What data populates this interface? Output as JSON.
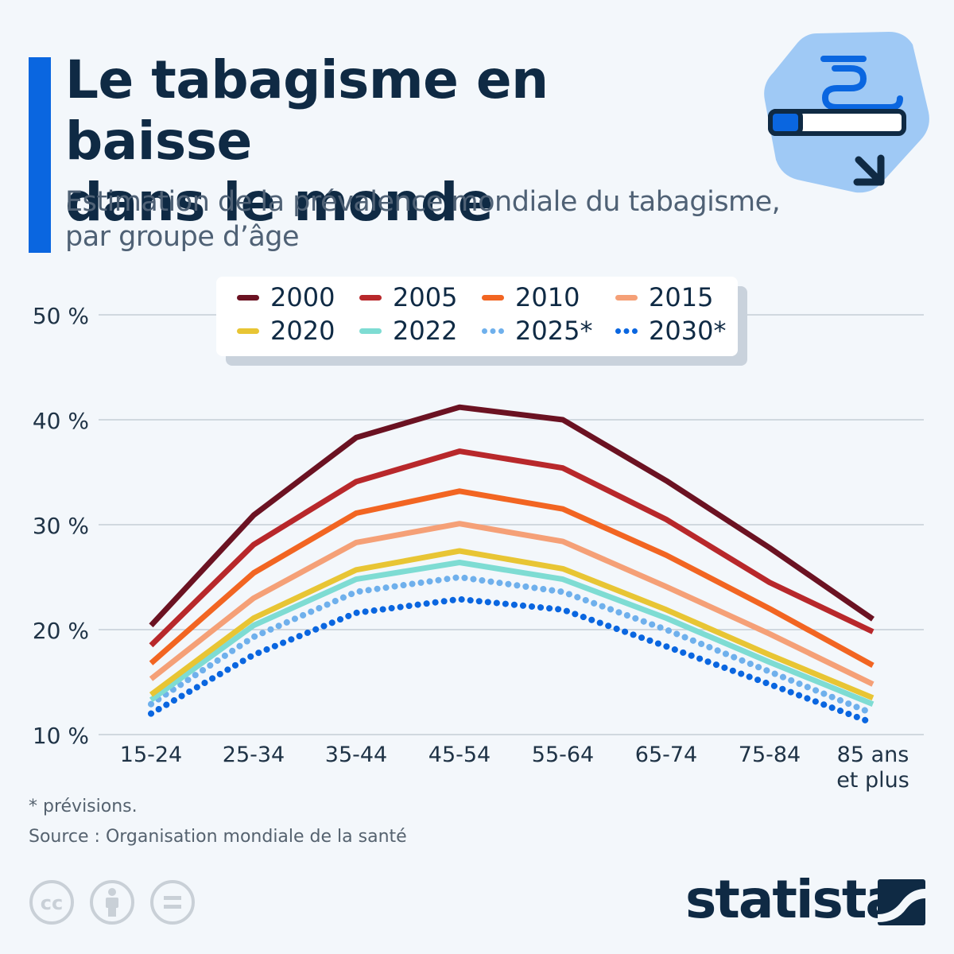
{
  "header": {
    "title_lines": [
      "Le tabagisme en baisse",
      "dans le monde"
    ],
    "subtitle_lines": [
      "Estimation de la prévalence mondiale du tabagisme,",
      "par groupe d’âge"
    ]
  },
  "chart_data": {
    "type": "line",
    "title": "Le tabagisme en baisse dans le monde",
    "subtitle": "Estimation de la prévalence mondiale du tabagisme, par groupe d’âge",
    "xlabel": "",
    "ylabel": "",
    "ylim": [
      10,
      50
    ],
    "grid": true,
    "legend_position": "top-center",
    "y_ticks": [
      {
        "value": 10,
        "label": "10 %"
      },
      {
        "value": 20,
        "label": "20 %"
      },
      {
        "value": 30,
        "label": "30 %"
      },
      {
        "value": 40,
        "label": "40 %"
      },
      {
        "value": 50,
        "label": "50 %"
      }
    ],
    "categories": [
      "15-24",
      "25-34",
      "35-44",
      "45-54",
      "55-64",
      "65-74",
      "75-84",
      "85 ans\net plus"
    ],
    "series": [
      {
        "name": "2000",
        "color": "#6b1222",
        "dotted": false,
        "values": [
          20.4,
          30.9,
          38.3,
          41.2,
          40.0,
          34.2,
          27.8,
          21.0
        ]
      },
      {
        "name": "2005",
        "color": "#b8282b",
        "dotted": false,
        "values": [
          18.5,
          28.1,
          34.1,
          37.0,
          35.4,
          30.5,
          24.5,
          19.8
        ]
      },
      {
        "name": "2010",
        "color": "#f26522",
        "dotted": false,
        "values": [
          16.8,
          25.4,
          31.1,
          33.2,
          31.5,
          27.1,
          22.0,
          16.6
        ]
      },
      {
        "name": "2015",
        "color": "#f5a077",
        "dotted": false,
        "values": [
          15.3,
          23.0,
          28.3,
          30.1,
          28.4,
          24.1,
          19.6,
          14.8
        ]
      },
      {
        "name": "2020",
        "color": "#e8c534",
        "dotted": false,
        "values": [
          13.8,
          21.1,
          25.7,
          27.5,
          25.8,
          21.9,
          17.6,
          13.5
        ]
      },
      {
        "name": "2022",
        "color": "#7edcd3",
        "dotted": false,
        "values": [
          13.3,
          20.4,
          24.8,
          26.4,
          24.8,
          21.1,
          16.9,
          12.9
        ]
      },
      {
        "name": "2025*",
        "color": "#6fb0ec",
        "dotted": true,
        "values": [
          12.9,
          19.3,
          23.6,
          25.0,
          23.6,
          20.0,
          16.0,
          12.0
        ]
      },
      {
        "name": "2030*",
        "color": "#0a66e0",
        "dotted": true,
        "values": [
          12.0,
          17.6,
          21.6,
          22.9,
          21.9,
          18.4,
          14.8,
          11.1
        ]
      }
    ]
  },
  "footer": {
    "note": "* prévisions.",
    "source": "Source : Organisation mondiale de la santé",
    "brand": "statista",
    "license_icons": [
      "cc-icon",
      "attribution-icon",
      "no-derivatives-icon"
    ]
  },
  "colors": {
    "accent": "#0a66e0",
    "title": "#0f2a44",
    "subtitle": "#4f6175",
    "grid": "#c5cdd6",
    "background": "#f3f7fb"
  }
}
